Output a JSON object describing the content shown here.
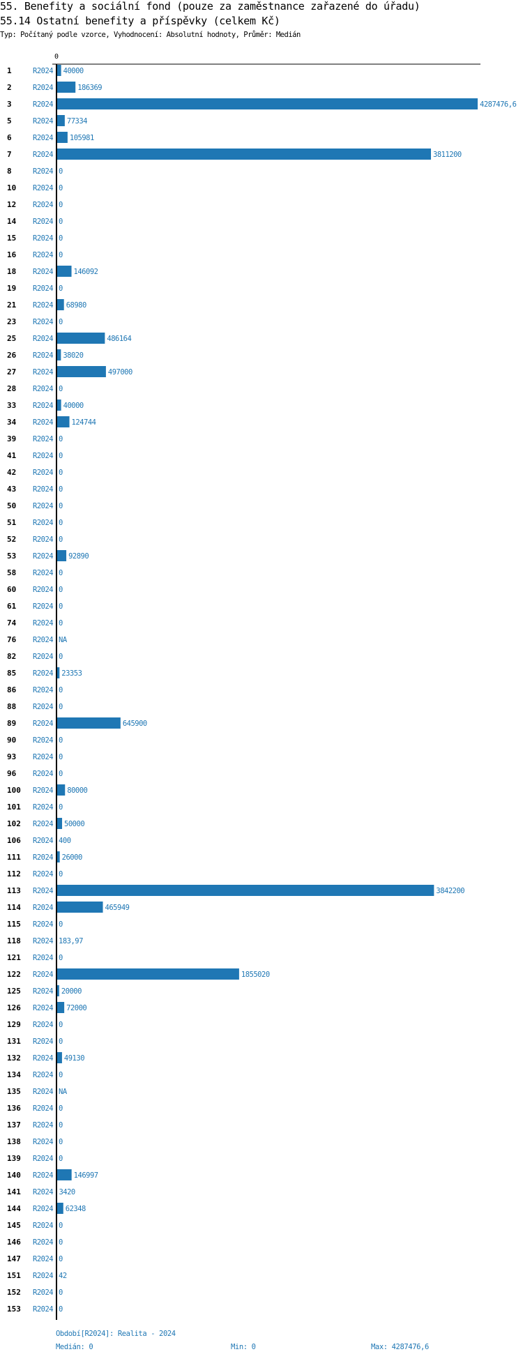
{
  "header": {
    "title": "55. Benefity a sociální fond (pouze za zaměstnance zařazené do úřadu)",
    "subtitle": "55.14 Ostatní benefity a příspěvky (celkem Kč)",
    "meta": "Typ: Počítaný podle vzorce, Vyhodnocení: Absolutní hodnoty, Průměr: Medián"
  },
  "colors": {
    "bar": "#1f77b4",
    "text": "#1f77b4",
    "axis": "#000000"
  },
  "chart_data": {
    "type": "bar",
    "orientation": "horizontal",
    "axis_tick_label": "0",
    "xlim": [
      0,
      4287476.6
    ],
    "grid": false,
    "series_label": "R2024",
    "categories": [
      "1",
      "2",
      "3",
      "5",
      "6",
      "7",
      "8",
      "10",
      "12",
      "14",
      "15",
      "16",
      "18",
      "19",
      "21",
      "23",
      "25",
      "26",
      "27",
      "28",
      "33",
      "34",
      "39",
      "41",
      "42",
      "43",
      "50",
      "51",
      "52",
      "53",
      "58",
      "60",
      "61",
      "74",
      "76",
      "82",
      "85",
      "86",
      "88",
      "89",
      "90",
      "93",
      "96",
      "100",
      "101",
      "102",
      "106",
      "111",
      "112",
      "113",
      "114",
      "115",
      "118",
      "121",
      "122",
      "125",
      "126",
      "129",
      "131",
      "132",
      "134",
      "135",
      "136",
      "137",
      "138",
      "139",
      "140",
      "141",
      "144",
      "145",
      "146",
      "147",
      "151",
      "152",
      "153"
    ],
    "values": [
      40000,
      186369,
      4287476.6,
      77334,
      105981,
      3811200,
      0,
      0,
      0,
      0,
      0,
      0,
      146092,
      0,
      68980,
      0,
      486164,
      38020,
      497000,
      0,
      40000,
      124744,
      0,
      0,
      0,
      0,
      0,
      0,
      0,
      92890,
      0,
      0,
      0,
      0,
      null,
      0,
      23353,
      0,
      0,
      645900,
      0,
      0,
      0,
      80000,
      0,
      50000,
      400,
      26000,
      0,
      3842200,
      465949,
      0,
      183.97,
      0,
      1855020,
      20000,
      72000,
      0,
      0,
      49130,
      0,
      null,
      0,
      0,
      0,
      0,
      146997,
      3420,
      62348,
      0,
      0,
      0,
      42,
      0,
      0
    ],
    "value_labels": [
      "40000",
      "186369",
      "4287476,6",
      "77334",
      "105981",
      "3811200",
      "0",
      "0",
      "0",
      "0",
      "0",
      "0",
      "146092",
      "0",
      "68980",
      "0",
      "486164",
      "38020",
      "497000",
      "0",
      "40000",
      "124744",
      "0",
      "0",
      "0",
      "0",
      "0",
      "0",
      "0",
      "92890",
      "0",
      "0",
      "0",
      "0",
      "NA",
      "0",
      "23353",
      "0",
      "0",
      "645900",
      "0",
      "0",
      "0",
      "80000",
      "0",
      "50000",
      "400",
      "26000",
      "0",
      "3842200",
      "465949",
      "0",
      "183,97",
      "0",
      "1855020",
      "20000",
      "72000",
      "0",
      "0",
      "49130",
      "0",
      "NA",
      "0",
      "0",
      "0",
      "0",
      "146997",
      "3420",
      "62348",
      "0",
      "0",
      "0",
      "42",
      "0",
      "0"
    ]
  },
  "footer": {
    "period": "Období[R2024]: Realita - 2024",
    "median": "Medián: 0",
    "min": "Min: 0",
    "max": "Max: 4287476,6"
  }
}
